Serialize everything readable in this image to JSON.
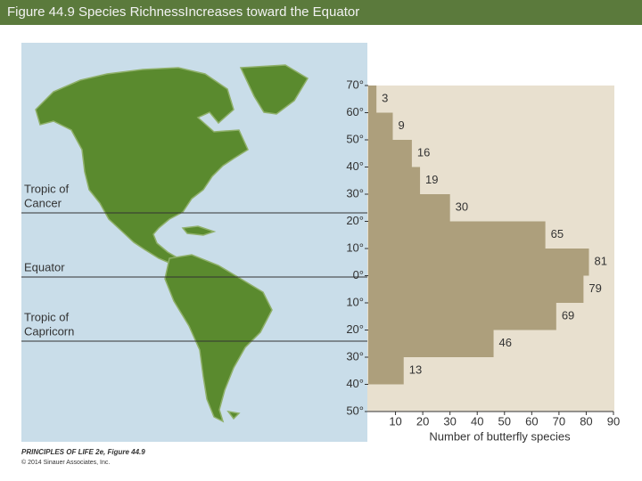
{
  "header": {
    "title": "Figure 44.9  Species RichnessIncreases toward the Equator"
  },
  "map": {
    "labels": [
      [
        "Tropic of",
        "Cancer"
      ],
      [
        "Equator"
      ],
      [
        "Tropic of",
        "Capricorn"
      ]
    ]
  },
  "credits": {
    "book": "PRINCIPLES OF LIFE 2e, Figure 44.9",
    "copyright": "© 2014 Sinauer Associates, Inc."
  },
  "chart_data": {
    "type": "bar",
    "orientation": "horizontal",
    "color": "#ad9f7c",
    "xlabel": "Number of butterfly species",
    "values": [
      3,
      9,
      16,
      19,
      30,
      65,
      81,
      79,
      69,
      46,
      13
    ],
    "xlim": [
      0,
      90
    ],
    "xticks": [
      10,
      20,
      30,
      40,
      50,
      60,
      70,
      80,
      90
    ],
    "ylim": [
      -50,
      70
    ],
    "yticks": [
      {
        "value": 70,
        "label": "70°"
      },
      {
        "value": 60,
        "label": "60°"
      },
      {
        "value": 50,
        "label": "50°"
      },
      {
        "value": 40,
        "label": "40°"
      },
      {
        "value": 30,
        "label": "30°"
      },
      {
        "value": 20,
        "label": "20°"
      },
      {
        "value": 10,
        "label": "10°"
      },
      {
        "value": 0,
        "label": "0°"
      },
      {
        "value": -10,
        "label": "10°"
      },
      {
        "value": -20,
        "label": "20°"
      },
      {
        "value": -30,
        "label": "30°"
      },
      {
        "value": -40,
        "label": "40°"
      },
      {
        "value": -50,
        "label": "50°"
      }
    ]
  }
}
